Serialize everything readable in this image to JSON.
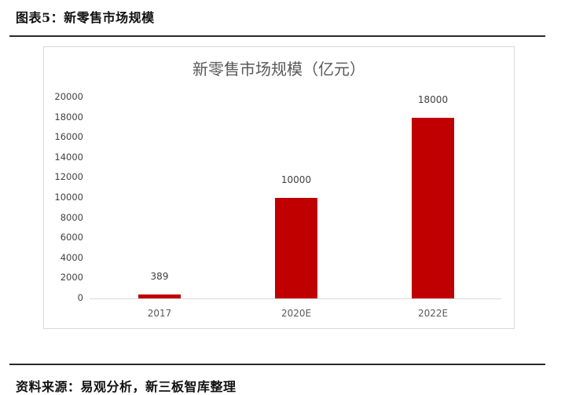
{
  "figure": {
    "caption": "图表5：新零售市场规模",
    "source": "资料来源：易观分析，新三板智库整理"
  },
  "colors": {
    "bar": "#c00000",
    "axis_line": "#d9d9d9",
    "title_text": "#595959"
  },
  "chart_data": {
    "type": "bar",
    "title": "新零售市场规模（亿元）",
    "xlabel": "",
    "ylabel": "",
    "categories": [
      "2017",
      "2020E",
      "2022E"
    ],
    "values": [
      389,
      10000,
      18000
    ],
    "data_labels": [
      "389",
      "10000",
      "18000"
    ],
    "ylim": [
      0,
      20000
    ],
    "yticks": [
      "0",
      "2000",
      "4000",
      "6000",
      "8000",
      "10000",
      "12000",
      "14000",
      "16000",
      "18000",
      "20000"
    ],
    "grid": false,
    "legend": null
  }
}
